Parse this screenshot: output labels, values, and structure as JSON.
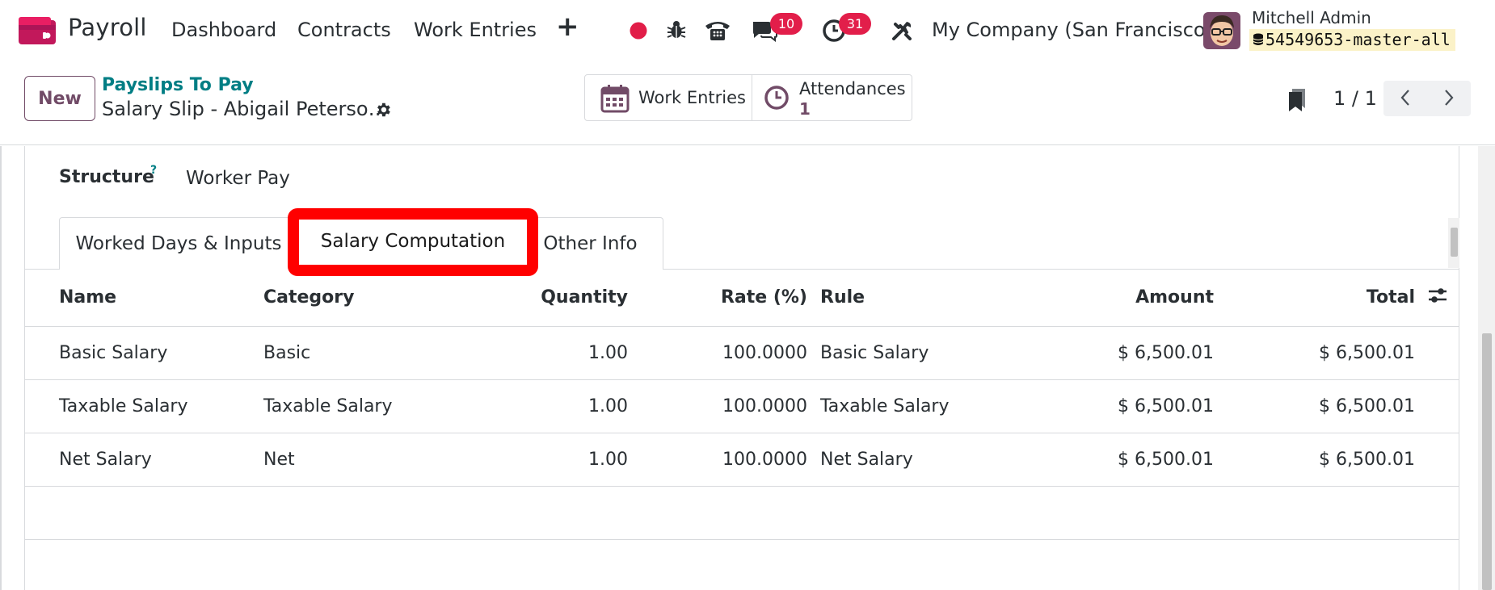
{
  "navbar": {
    "app_name": "Payroll",
    "menu": [
      "Dashboard",
      "Contracts",
      "Work Entries"
    ],
    "plus": "+",
    "messages_count": "10",
    "activities_count": "31",
    "company": "My Company (San Francisco)",
    "user_name": "Mitchell Admin",
    "database": "54549653-master-all",
    "icons": [
      "record-dot-icon",
      "bug-icon",
      "phone-icon",
      "chat-icon",
      "clock-icon",
      "tools-icon"
    ],
    "colors": {
      "record": "#e11d48",
      "badge": "#e21e4a",
      "brand": "#714b67"
    }
  },
  "control": {
    "new_label": "New",
    "breadcrumb_link": "Payslips To Pay",
    "record_title": "Salary Slip - Abigail Peterso…",
    "smart_buttons": [
      {
        "label": "Work Entries",
        "value": ""
      },
      {
        "label": "Attendances",
        "value": "1"
      }
    ],
    "pager": "1 / 1"
  },
  "form": {
    "structure_label": "Structure",
    "structure_help": "?",
    "structure_value": "Worker Pay",
    "tabs": [
      "Worked Days & Inputs",
      "Salary Computation",
      "Other Info"
    ],
    "active_tab": "Salary Computation",
    "columns": [
      "Name",
      "Category",
      "Quantity",
      "Rate (%)",
      "Rule",
      "Amount",
      "Total"
    ],
    "rows": [
      {
        "name": "Basic Salary",
        "category": "Basic",
        "quantity": "1.00",
        "rate": "100.0000",
        "rule": "Basic Salary",
        "amount": "$ 6,500.01",
        "total": "$ 6,500.01"
      },
      {
        "name": "Taxable Salary",
        "category": "Taxable Salary",
        "quantity": "1.00",
        "rate": "100.0000",
        "rule": "Taxable Salary",
        "amount": "$ 6,500.01",
        "total": "$ 6,500.01"
      },
      {
        "name": "Net Salary",
        "category": "Net",
        "quantity": "1.00",
        "rate": "100.0000",
        "rule": "Net Salary",
        "amount": "$ 6,500.01",
        "total": "$ 6,500.01"
      }
    ]
  }
}
